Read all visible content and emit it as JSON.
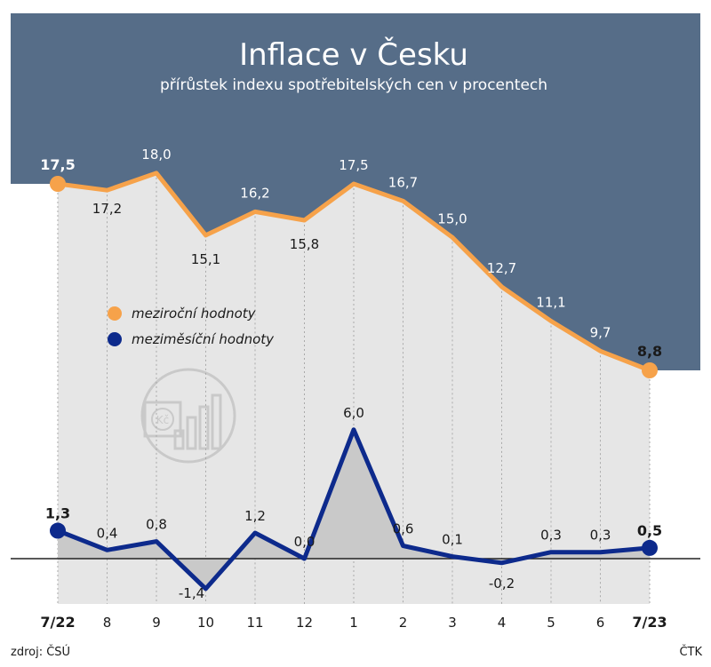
{
  "title": "Inflace v Česku",
  "subtitle": "přírůstek indexu spotřebitelských cen v procentech",
  "source": "zdroj: ČSÚ",
  "agency": "ČTK",
  "colors": {
    "header_bg": "#566d88",
    "yoy": "#f6a24a",
    "mom": "#0d2a8c",
    "column_fill": "#e6e6e6",
    "mom_area": "#c9c9c9"
  },
  "legend": [
    {
      "label": "meziroční hodnoty",
      "color": "#f6a24a"
    },
    {
      "label": "meziměsíční hodnoty",
      "color": "#0d2a8c"
    }
  ],
  "chart_data": {
    "type": "line",
    "categories": [
      "7/22",
      "8",
      "9",
      "10",
      "11",
      "12",
      "1",
      "2",
      "3",
      "4",
      "5",
      "6",
      "7/23"
    ],
    "series": [
      {
        "name": "meziroční hodnoty",
        "values": [
          17.5,
          17.2,
          18.0,
          15.1,
          16.2,
          15.8,
          17.5,
          16.7,
          15.0,
          12.7,
          11.1,
          9.7,
          8.8
        ],
        "labels": [
          "17,5",
          "17,2",
          "18,0",
          "15,1",
          "16,2",
          "15,8",
          "17,5",
          "16,7",
          "15,0",
          "12,7",
          "11,1",
          "9,7",
          "8,8"
        ]
      },
      {
        "name": "meziměsíční hodnoty",
        "values": [
          1.3,
          0.4,
          0.8,
          -1.4,
          1.2,
          0.0,
          6.0,
          0.6,
          0.1,
          -0.2,
          0.3,
          0.3,
          0.5
        ],
        "labels": [
          "1,3",
          "0,4",
          "0,8",
          "-1,4",
          "1,2",
          "0,0",
          "6,0",
          "0,6",
          "0,1",
          "-0,2",
          "0,3",
          "0,3",
          "0,5"
        ]
      }
    ],
    "grid": false,
    "legend_position": "middle-left"
  }
}
